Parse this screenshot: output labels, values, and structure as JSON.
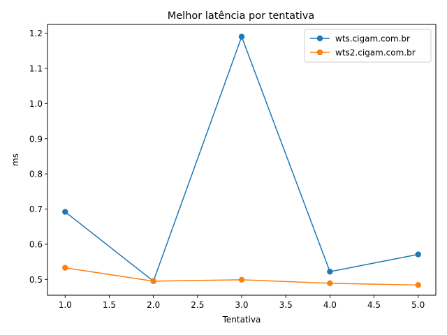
{
  "chart_data": {
    "type": "line",
    "title": "Melhor latência por tentativa",
    "xlabel": "Tentativa",
    "ylabel": "ms",
    "xlim": [
      0.8,
      5.2
    ],
    "ylim": [
      0.455,
      1.225
    ],
    "x_ticks": [
      1.0,
      1.5,
      2.0,
      2.5,
      3.0,
      3.5,
      4.0,
      4.5,
      5.0
    ],
    "x_tick_labels": [
      "1.0",
      "1.5",
      "2.0",
      "2.5",
      "3.0",
      "3.5",
      "4.0",
      "4.5",
      "5.0"
    ],
    "y_ticks": [
      0.5,
      0.6,
      0.7,
      0.8,
      0.9,
      1.0,
      1.1,
      1.2
    ],
    "y_tick_labels": [
      "0.5",
      "0.6",
      "0.7",
      "0.8",
      "0.9",
      "1.0",
      "1.1",
      "1.2"
    ],
    "grid": false,
    "legend": "top-right",
    "x": [
      1,
      2,
      3,
      4,
      5
    ],
    "series": [
      {
        "name": "wts.cigam.com.br",
        "color": "#1f77b4",
        "values": [
          0.692,
          0.495,
          1.19,
          0.522,
          0.571
        ]
      },
      {
        "name": "wts2.cigam.com.br",
        "color": "#ff7f0e",
        "values": [
          0.533,
          0.495,
          0.499,
          0.489,
          0.484
        ]
      }
    ]
  }
}
